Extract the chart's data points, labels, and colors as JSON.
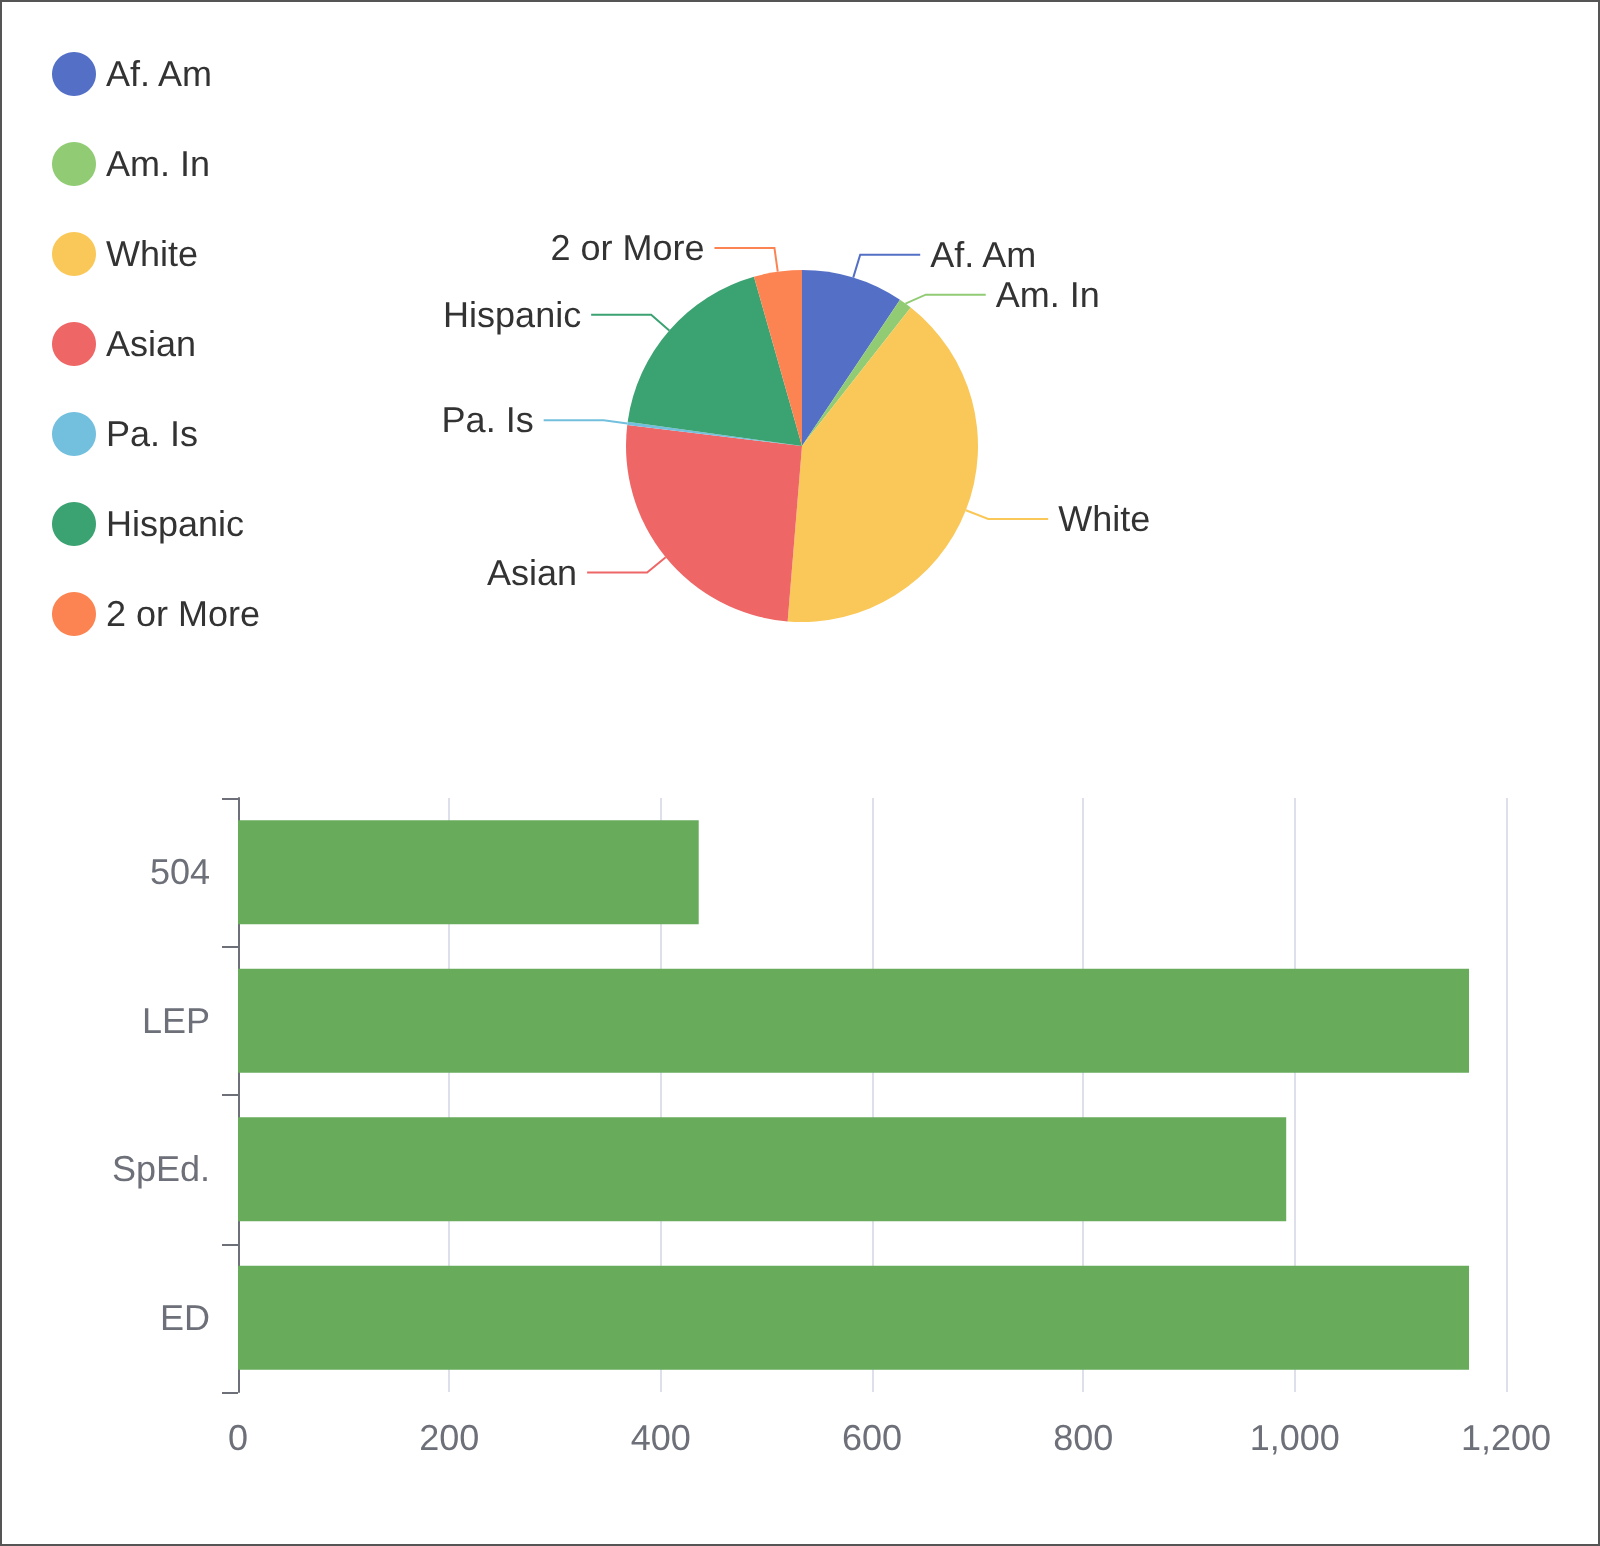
{
  "chart_data": [
    {
      "type": "pie",
      "categories": [
        "Af. Am",
        "Am. In",
        "White",
        "Asian",
        "Pa. Is",
        "Hispanic",
        "2 or More"
      ],
      "values": [
        9.4,
        1.2,
        40.7,
        25.6,
        0.3,
        18.4,
        4.4
      ],
      "colors": [
        "#5470c6",
        "#91cc75",
        "#fac858",
        "#ee6666",
        "#73c0de",
        "#3ba272",
        "#fc8452"
      ],
      "legend": "top left"
    },
    {
      "type": "bar",
      "orientation": "horizontal",
      "categories": [
        "504",
        "LEP",
        "SpEd.",
        "ED"
      ],
      "values": [
        436,
        1165,
        992,
        1165
      ],
      "color": "#67ab5b",
      "xlim": [
        0,
        1200
      ],
      "xticks": [
        0,
        200,
        400,
        600,
        800,
        {
          "value": 1000,
          "label": "1,000"
        },
        {
          "value": 1200,
          "label": "1,200"
        }
      ],
      "grid": "x"
    }
  ]
}
